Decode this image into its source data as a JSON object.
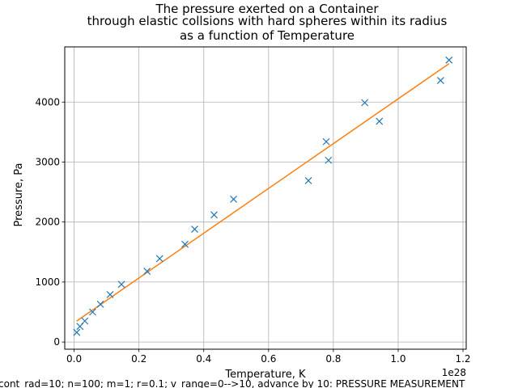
{
  "chart_data": {
    "type": "scatter",
    "title_lines": [
      "The pressure exerted on a Container",
      "through elastic collsions with hard spheres within its radius",
      "as a function of Temperature"
    ],
    "xlabel": "Temperature, K",
    "ylabel": "Pressure, Pa",
    "x_offset_label": "1e28",
    "x_unit_scale": 1e+28,
    "xlim": [
      -0.029,
      1.21
    ],
    "ylim": [
      -120,
      4920
    ],
    "x_ticks": [
      0.0,
      0.2,
      0.4,
      0.6,
      0.8,
      1.0,
      1.2
    ],
    "x_tick_labels": [
      "0.0",
      "0.2",
      "0.4",
      "0.6",
      "0.8",
      "1.0",
      "1.2"
    ],
    "y_ticks": [
      0,
      1000,
      2000,
      3000,
      4000
    ],
    "y_tick_labels": [
      "0",
      "1000",
      "2000",
      "3000",
      "4000"
    ],
    "grid": true,
    "series": [
      {
        "kind": "marker-x",
        "color": "#1f77b4",
        "points": [
          [
            0.008,
            160
          ],
          [
            0.018,
            260
          ],
          [
            0.033,
            350
          ],
          [
            0.057,
            500
          ],
          [
            0.081,
            630
          ],
          [
            0.111,
            790
          ],
          [
            0.146,
            960
          ],
          [
            0.225,
            1180
          ],
          [
            0.264,
            1390
          ],
          [
            0.342,
            1630
          ],
          [
            0.372,
            1880
          ],
          [
            0.432,
            2120
          ],
          [
            0.492,
            2380
          ],
          [
            0.723,
            2690
          ],
          [
            0.778,
            3340
          ],
          [
            0.785,
            3030
          ],
          [
            0.897,
            3990
          ],
          [
            0.942,
            3680
          ],
          [
            1.131,
            4360
          ],
          [
            1.157,
            4700
          ]
        ]
      },
      {
        "kind": "fit-line",
        "color": "#ff7f0e",
        "points": [
          [
            0.008,
            350
          ],
          [
            1.157,
            4640
          ]
        ]
      }
    ]
  },
  "footer_text": "cont_rad=10; n=100; m=1; r=0.1; v_range=0-->10, advance by 10:    PRESSURE MEASUREMENT"
}
